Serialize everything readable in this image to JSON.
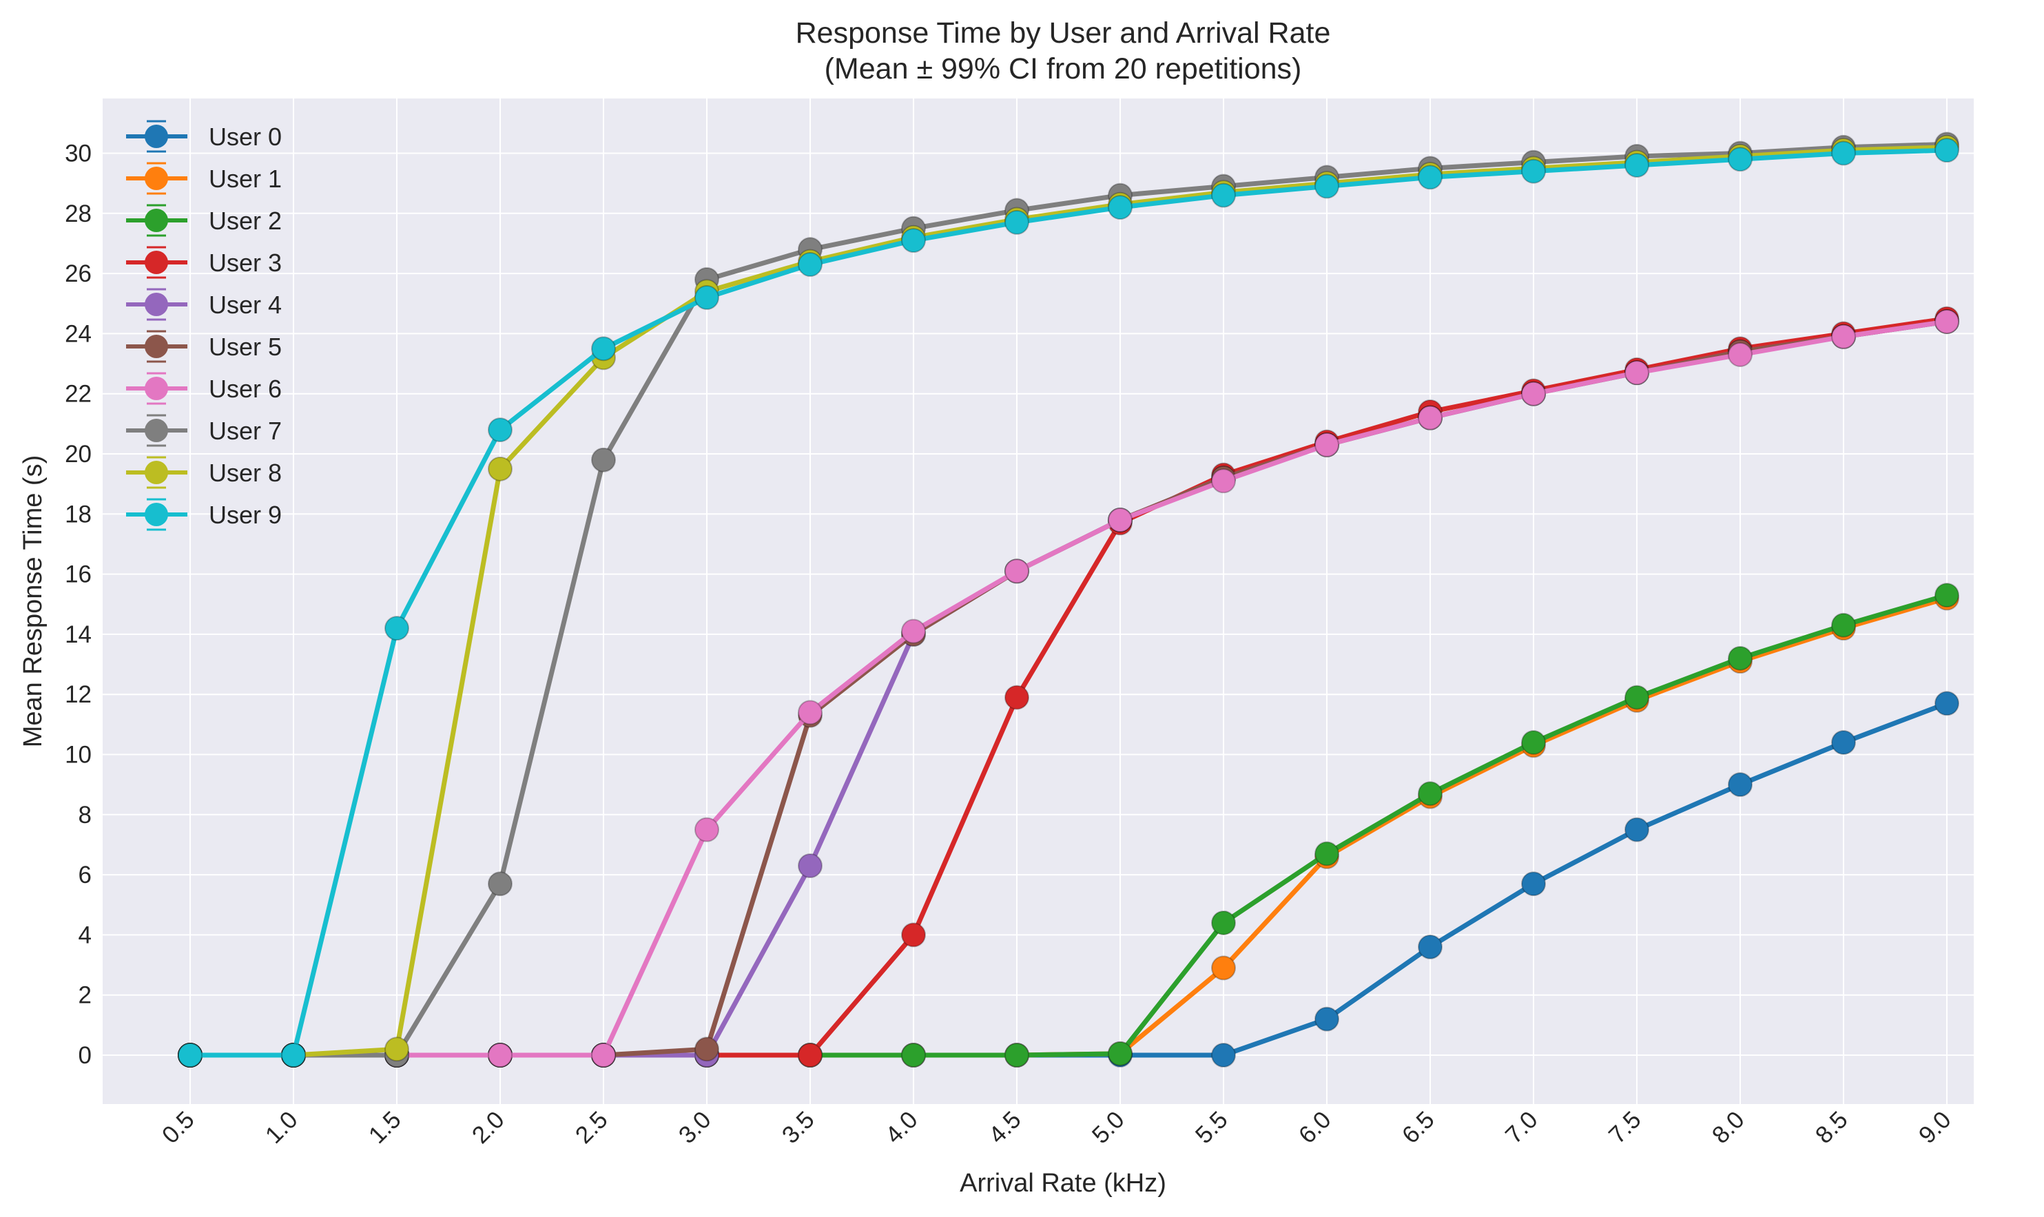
{
  "chart_data": {
    "type": "line",
    "title": "Response Time by User and Arrival Rate",
    "subtitle": "(Mean ± 99% CI from 20 repetitions)",
    "xlabel": "Arrival Rate (kHz)",
    "ylabel": "Mean Response Time (s)",
    "categories": [
      "0.5",
      "1.0",
      "1.5",
      "2.0",
      "2.5",
      "3.0",
      "3.5",
      "4.0",
      "4.5",
      "5.0",
      "5.5",
      "6.0",
      "6.5",
      "7.0",
      "7.5",
      "8.0",
      "8.5",
      "9.0"
    ],
    "yticks": [
      "0",
      "2",
      "4",
      "6",
      "8",
      "10",
      "12",
      "14",
      "16",
      "18",
      "20",
      "22",
      "24",
      "26",
      "28",
      "30"
    ],
    "ylim": [
      -1.5,
      32
    ],
    "grid": true,
    "legend_position": "top-left",
    "series": [
      {
        "name": "User 0",
        "color": "#1f77b4",
        "values": [
          0,
          0,
          0,
          0,
          0,
          0,
          0,
          0,
          0,
          0,
          0,
          1.2,
          3.6,
          5.7,
          7.5,
          9.0,
          10.4,
          11.7
        ]
      },
      {
        "name": "User 1",
        "color": "#ff7f0e",
        "values": [
          0,
          0,
          0,
          0,
          0,
          0,
          0,
          0,
          0,
          0.05,
          2.9,
          6.6,
          8.6,
          10.3,
          11.8,
          13.1,
          14.2,
          15.2
        ]
      },
      {
        "name": "User 2",
        "color": "#2ca02c",
        "values": [
          0,
          0,
          0,
          0,
          0,
          0,
          0,
          0,
          0,
          0.05,
          4.4,
          6.7,
          8.7,
          10.4,
          11.9,
          13.2,
          14.3,
          15.3
        ]
      },
      {
        "name": "User 3",
        "color": "#d62728",
        "values": [
          0,
          0,
          0,
          0,
          0,
          0,
          0,
          4.0,
          11.9,
          17.7,
          19.3,
          20.4,
          21.4,
          22.1,
          22.8,
          23.5,
          24.0,
          24.5
        ]
      },
      {
        "name": "User 4",
        "color": "#9467bd",
        "values": [
          0,
          0,
          0,
          0,
          0,
          0,
          6.3,
          14.0,
          16.1,
          17.8,
          19.2,
          20.3,
          21.2,
          22.0,
          22.7,
          23.4,
          23.9,
          24.4
        ]
      },
      {
        "name": "User 5",
        "color": "#8c564b",
        "values": [
          0,
          0,
          0,
          0,
          0,
          0.2,
          11.3,
          14.0,
          16.1,
          17.8,
          19.2,
          20.3,
          21.2,
          22.0,
          22.7,
          23.4,
          23.9,
          24.4
        ]
      },
      {
        "name": "User 6",
        "color": "#e377c2",
        "values": [
          0,
          0,
          0,
          0,
          0,
          7.5,
          11.4,
          14.1,
          16.1,
          17.8,
          19.1,
          20.3,
          21.2,
          22.0,
          22.7,
          23.3,
          23.9,
          24.4
        ]
      },
      {
        "name": "User 7",
        "color": "#7f7f7f",
        "values": [
          0,
          0,
          0,
          5.7,
          19.8,
          25.8,
          26.8,
          27.5,
          28.1,
          28.6,
          28.9,
          29.2,
          29.5,
          29.7,
          29.9,
          30.0,
          30.2,
          30.3
        ]
      },
      {
        "name": "User 8",
        "color": "#bcbd22",
        "values": [
          0,
          0,
          0.2,
          19.5,
          23.2,
          25.4,
          26.4,
          27.2,
          27.8,
          28.3,
          28.7,
          29.0,
          29.3,
          29.5,
          29.7,
          29.9,
          30.1,
          30.2
        ]
      },
      {
        "name": "User 9",
        "color": "#17becf",
        "values": [
          0,
          0,
          14.2,
          20.8,
          23.5,
          25.2,
          26.3,
          27.1,
          27.7,
          28.2,
          28.6,
          28.9,
          29.2,
          29.4,
          29.6,
          29.8,
          30.0,
          30.1
        ]
      }
    ]
  }
}
